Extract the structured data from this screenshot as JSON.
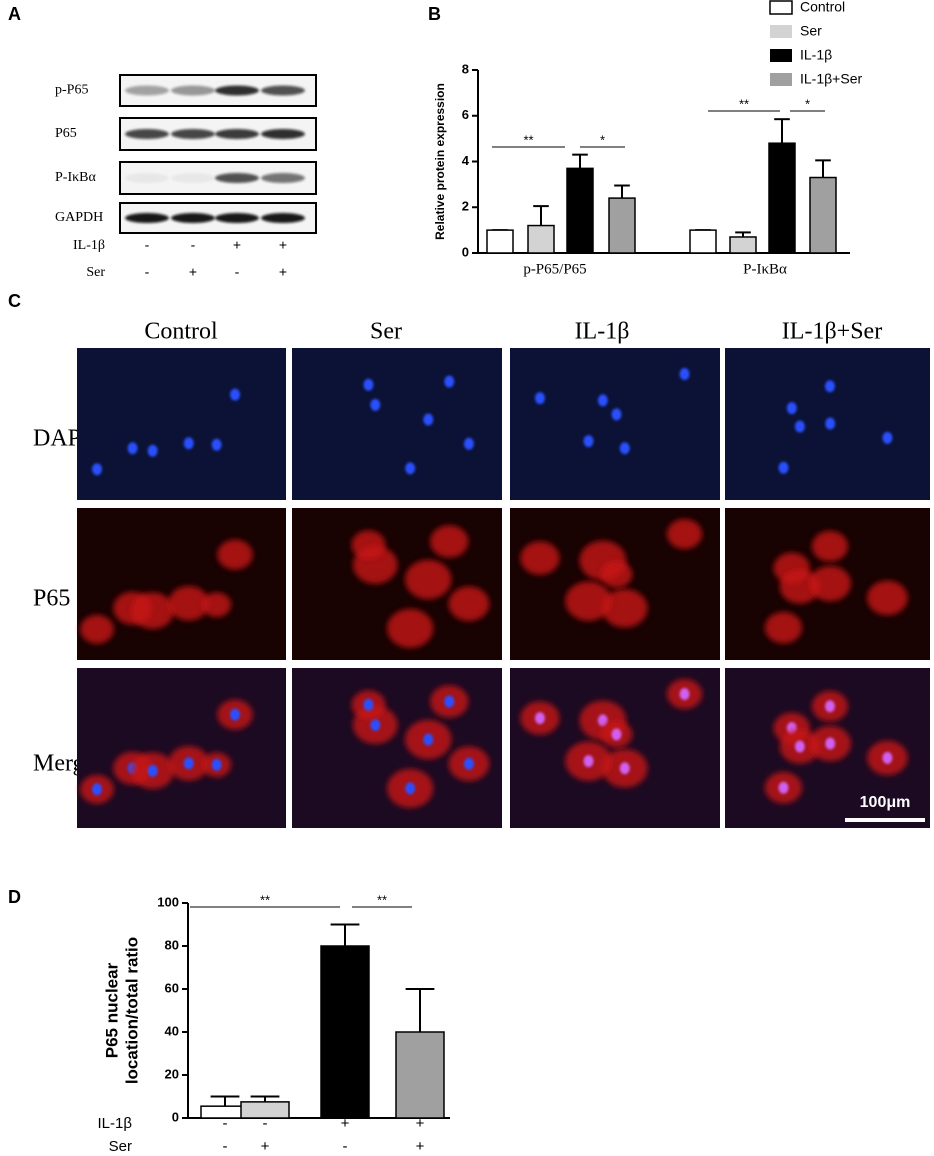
{
  "panel_a": {
    "label": "A",
    "bands": [
      "p-P65",
      "P65",
      "P-IκBα",
      "GAPDH"
    ],
    "treatments": [
      {
        "name": "IL-1β",
        "signs": [
          "-",
          "-",
          "+",
          "+"
        ]
      },
      {
        "name": "Ser",
        "signs": [
          "-",
          "+",
          "-",
          "+"
        ]
      }
    ]
  },
  "panel_c": {
    "label": "C",
    "columns": [
      "Control",
      "Ser",
      "IL-1β",
      "IL-1β+Ser"
    ],
    "rows": [
      "DAPI",
      "P65",
      "Merge"
    ],
    "scale_bar": "100μm"
  },
  "chart_data": [
    {
      "type": "bar",
      "panel_label": "B",
      "ylabel": "Relative protein expression",
      "categories": [
        "p-P65/P65",
        "P-IκBα"
      ],
      "series": [
        {
          "name": "Control",
          "color": "#ffffff",
          "values": [
            1,
            1
          ],
          "errors": [
            0,
            0
          ]
        },
        {
          "name": "Ser",
          "color": "#d3d3d3",
          "values": [
            1.2,
            0.7
          ],
          "errors": [
            0.85,
            0.2
          ]
        },
        {
          "name": "IL-1β",
          "color": "#000000",
          "values": [
            3.7,
            4.8
          ],
          "errors": [
            0.6,
            1.05
          ]
        },
        {
          "name": "IL-1β+Ser",
          "color": "#a0a0a0",
          "values": [
            2.4,
            3.3
          ],
          "errors": [
            0.55,
            0.75
          ]
        }
      ],
      "ylim": [
        0,
        8
      ],
      "yticks": [
        0,
        2,
        4,
        6,
        8
      ],
      "annotations": [
        "**",
        "*",
        "**",
        "*"
      ],
      "legend": "top-right"
    },
    {
      "type": "bar",
      "panel_label": "D",
      "ylabel": [
        "P65 nuclear",
        "location/total ratio"
      ],
      "categories": [
        null,
        null,
        null,
        null
      ],
      "values": [
        5.5,
        7.5,
        80,
        40
      ],
      "errors": [
        4.5,
        2.5,
        10,
        20
      ],
      "colors": [
        "#ffffff",
        "#d3d3d3",
        "#000000",
        "#a0a0a0"
      ],
      "ylim": [
        0,
        100
      ],
      "yticks": [
        0,
        20,
        40,
        60,
        80,
        100
      ],
      "annotations": [
        "**",
        "**"
      ],
      "treatments": [
        {
          "name": "IL-1β",
          "signs": [
            "-",
            "-",
            "+",
            "+"
          ]
        },
        {
          "name": "Ser",
          "signs": [
            "-",
            "+",
            "-",
            "+"
          ]
        }
      ]
    }
  ]
}
